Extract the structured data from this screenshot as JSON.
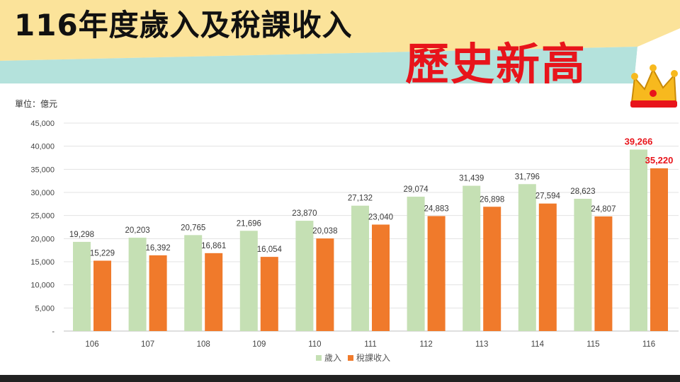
{
  "header": {
    "title": "116年度歲入及稅課收入",
    "highlight": "歷史新高"
  },
  "unit_label": "單位：億元",
  "colors": {
    "banner_yellow": "#fbe39a",
    "banner_teal": "#b4e2dc",
    "revenue": "#c5e0b4",
    "tax": "#f07a2b",
    "highlight_text": "#e8141b"
  },
  "chart_data": {
    "type": "bar",
    "categories": [
      "106",
      "107",
      "108",
      "109",
      "110",
      "111",
      "112",
      "113",
      "114",
      "115",
      "116"
    ],
    "series": [
      {
        "name": "歲入",
        "values": [
          19298,
          20203,
          20765,
          21696,
          23870,
          27132,
          29074,
          31439,
          31796,
          28623,
          39266
        ]
      },
      {
        "name": "稅課收入",
        "values": [
          15229,
          16392,
          16861,
          16054,
          20038,
          23040,
          24883,
          26898,
          27594,
          24807,
          35220
        ]
      }
    ],
    "ylim": [
      0,
      45000
    ],
    "yticks": [
      "-",
      "5,000",
      "10,000",
      "15,000",
      "20,000",
      "25,000",
      "30,000",
      "35,000",
      "40,000",
      "45,000"
    ],
    "data_labels": [
      [
        "19,298",
        "20,203",
        "20,765",
        "21,696",
        "23,870",
        "27,132",
        "29,074",
        "31,439",
        "31,796",
        "28,623",
        "39,266"
      ],
      [
        "15,229",
        "16,392",
        "16,861",
        "16,054",
        "20,038",
        "23,040",
        "24,883",
        "26,898",
        "27,594",
        "24,807",
        "35,220"
      ]
    ],
    "highlight_category": "116",
    "grid": true,
    "legend": "bottom-center"
  }
}
